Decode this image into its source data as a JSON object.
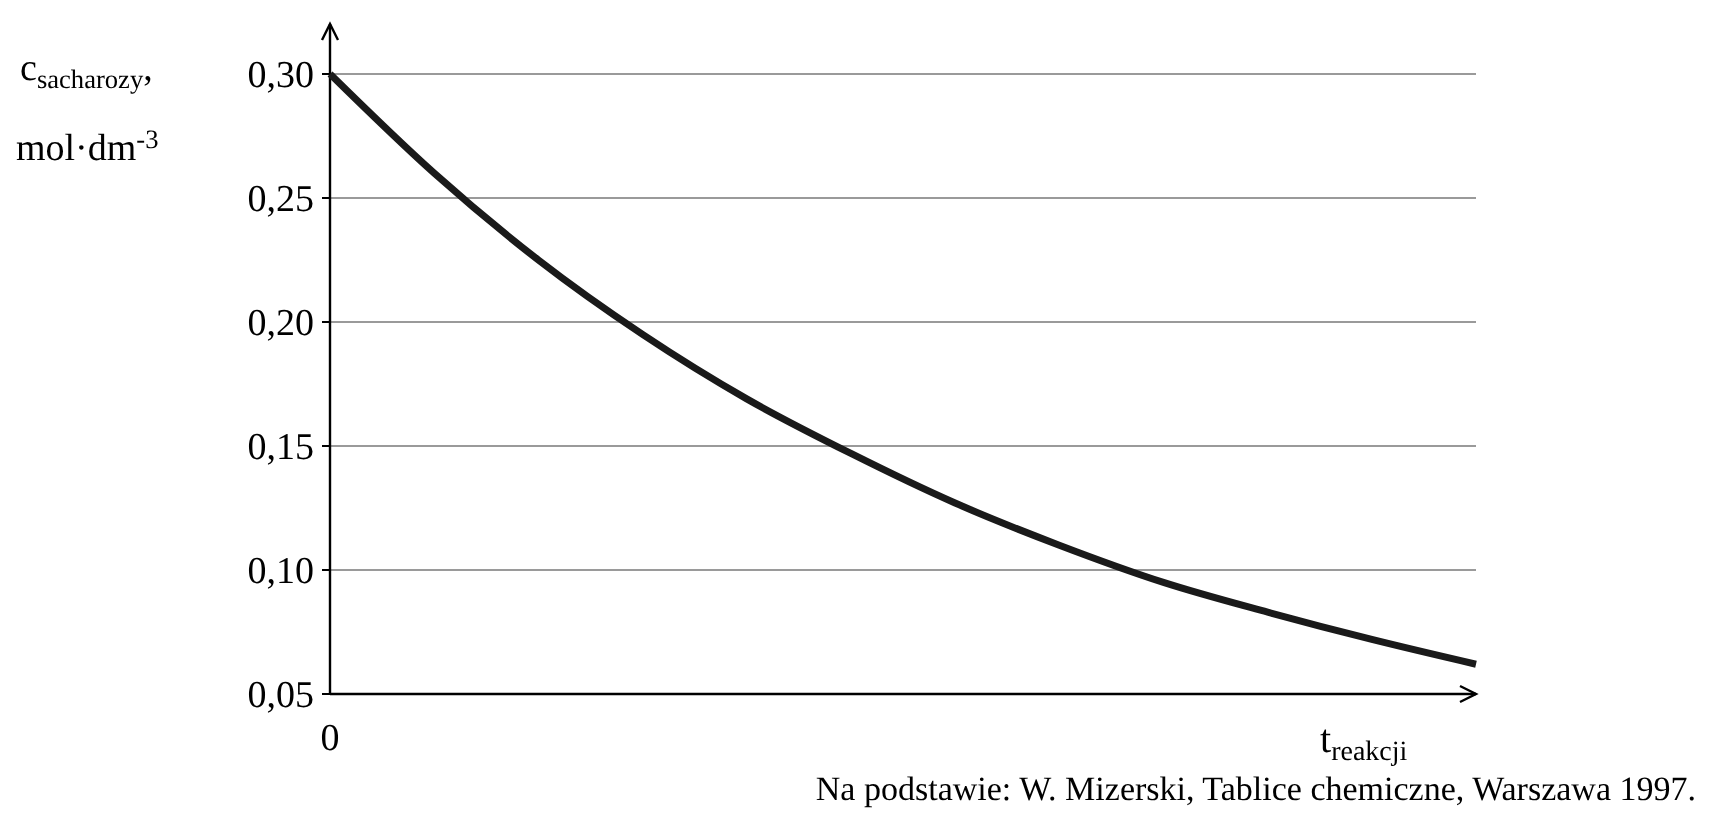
{
  "chart_data": {
    "type": "line",
    "ylabel": "c$_{sacharozy}$, mol·dm$^{-3}$",
    "xlabel": "t$_{reakcji}$",
    "categories": [
      "0",
      null,
      null,
      null,
      null,
      null,
      null,
      null,
      null,
      null,
      null,
      null
    ],
    "series": [
      {
        "color": "#1a1a1a",
        "values": [
          0.3,
          0.26,
          0.225,
          0.195,
          0.169,
          0.147,
          0.127,
          0.11,
          0.095,
          0.083,
          0.072,
          0.062
        ]
      }
    ],
    "ylim": [
      0.05,
      0.3
    ],
    "yticks": [
      {
        "value": 0.05,
        "label": "0,05"
      },
      {
        "value": 0.1,
        "label": "0,10"
      },
      {
        "value": 0.15,
        "label": "0,15"
      },
      {
        "value": 0.2,
        "label": "0,20"
      },
      {
        "value": 0.25,
        "label": "0,25"
      },
      {
        "value": 0.3,
        "label": "0,30"
      }
    ],
    "grid": "y",
    "marker": "none",
    "line_style": "solid",
    "annotations": [
      "Na podstawie: W. Mizerski, Tablice chemiczne, Warszawa 1997."
    ]
  }
}
